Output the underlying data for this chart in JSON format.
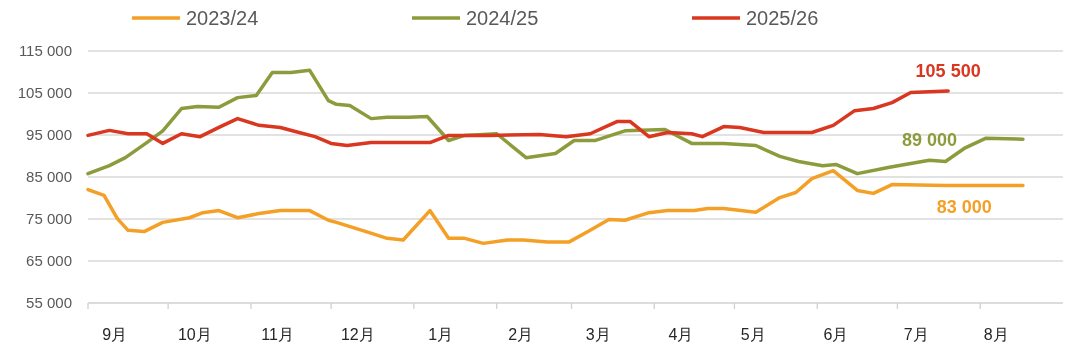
{
  "chart_data": {
    "type": "line",
    "xlim": [
      "2024-09-01",
      "2025-08-31"
    ],
    "xticks": [
      {
        "value": "2024-09-01",
        "label": null
      },
      {
        "value": "2024-10-01",
        "label": null
      },
      {
        "value": "2024-11-01",
        "label": null
      },
      {
        "value": "2024-12-01",
        "label": null
      },
      {
        "value": "2025-01-01",
        "label": null
      },
      {
        "value": "2025-02-01",
        "label": null
      },
      {
        "value": "2025-03-01",
        "label": null
      },
      {
        "value": "2025-04-01",
        "label": null
      },
      {
        "value": "2025-05-01",
        "label": null
      },
      {
        "value": "2025-06-01",
        "label": null
      },
      {
        "value": "2025-07-01",
        "label": null
      },
      {
        "value": "2025-08-01",
        "label": null
      },
      {
        "value": "2024-09-11",
        "label": "9月"
      },
      {
        "value": "2024-10-11",
        "label": "10月"
      },
      {
        "value": "2024-11-11",
        "label": "11月"
      },
      {
        "value": "2024-12-11",
        "label": "12月"
      },
      {
        "value": "2025-01-11",
        "label": "1月"
      },
      {
        "value": "2025-02-10",
        "label": "2月"
      },
      {
        "value": "2025-03-11",
        "label": "3月"
      },
      {
        "value": "2025-04-11",
        "label": "4月"
      },
      {
        "value": "2025-05-08",
        "label": "5月"
      },
      {
        "value": "2025-06-08",
        "label": "6月"
      },
      {
        "value": "2025-07-08",
        "label": "7月"
      },
      {
        "value": "2025-08-07",
        "label": "8月"
      }
    ],
    "ylim": [
      55000,
      115000
    ],
    "yticks": [
      {
        "value": 55000,
        "label": "55 000"
      },
      {
        "value": 65000,
        "label": "65 000"
      },
      {
        "value": 75000,
        "label": "75 000"
      },
      {
        "value": 85000,
        "label": "85 000"
      },
      {
        "value": 95000,
        "label": "95 000"
      },
      {
        "value": 105000,
        "label": "105 000"
      },
      {
        "value": 115000,
        "label": "115 000"
      }
    ],
    "grid": "y",
    "legend": "top",
    "series": [
      {
        "name": "2023/24",
        "color": "#f4a026",
        "x": [
          "2024-09-01",
          "2024-09-07",
          "2024-09-12",
          "2024-09-16",
          "2024-09-22",
          "2024-09-29",
          "2024-10-09",
          "2024-10-14",
          "2024-10-20",
          "2024-10-27",
          "2024-11-04",
          "2024-11-12",
          "2024-11-23",
          "2024-11-30",
          "2024-12-03",
          "2024-12-15",
          "2024-12-22",
          "2024-12-28",
          "2025-01-07",
          "2025-01-14",
          "2025-01-20",
          "2025-01-27",
          "2025-02-05",
          "2025-02-11",
          "2025-02-20",
          "2025-02-28",
          "2025-03-08",
          "2025-03-15",
          "2025-03-21",
          "2025-03-30",
          "2025-04-06",
          "2025-04-16",
          "2025-04-21",
          "2025-04-27",
          "2025-05-09",
          "2025-05-18",
          "2025-05-24",
          "2025-05-30",
          "2025-06-07",
          "2025-06-16",
          "2025-06-22",
          "2025-06-29",
          "2025-07-19",
          "2025-07-26",
          "2025-08-17"
        ],
        "values": [
          82000,
          80600,
          75100,
          72300,
          72000,
          74200,
          75300,
          76500,
          77000,
          75300,
          76300,
          77000,
          77000,
          74700,
          74200,
          71800,
          70400,
          70000,
          77000,
          70400,
          70400,
          69200,
          70000,
          70000,
          69500,
          69500,
          72300,
          74900,
          74700,
          76500,
          77000,
          77000,
          77500,
          77500,
          76600,
          80100,
          81300,
          84600,
          86500,
          81800,
          81100,
          83200,
          83000,
          83000,
          83000
        ]
      },
      {
        "name": "2024/25",
        "color": "#8c9c3c",
        "x": [
          "2024-09-01",
          "2024-09-09",
          "2024-09-15",
          "2024-09-23",
          "2024-09-29",
          "2024-10-06",
          "2024-10-12",
          "2024-10-20",
          "2024-10-27",
          "2024-11-03",
          "2024-11-09",
          "2024-11-16",
          "2024-11-23",
          "2024-11-30",
          "2024-12-03",
          "2024-12-08",
          "2024-12-16",
          "2024-12-22",
          "2024-12-30",
          "2025-01-06",
          "2025-01-14",
          "2025-01-20",
          "2025-02-01",
          "2025-02-12",
          "2025-02-23",
          "2025-03-02",
          "2025-03-10",
          "2025-03-21",
          "2025-04-05",
          "2025-04-15",
          "2025-04-27",
          "2025-05-09",
          "2025-05-18",
          "2025-05-25",
          "2025-06-03",
          "2025-06-08",
          "2025-06-16",
          "2025-06-28",
          "2025-07-06",
          "2025-07-13",
          "2025-07-19",
          "2025-07-26",
          "2025-08-03",
          "2025-08-17"
        ],
        "values": [
          85800,
          87700,
          89600,
          93200,
          96000,
          101300,
          101800,
          101600,
          103900,
          104400,
          109900,
          109900,
          110400,
          103200,
          102300,
          102000,
          98900,
          99200,
          99200,
          99400,
          93700,
          94900,
          95300,
          89600,
          90600,
          93700,
          93700,
          96000,
          96300,
          93000,
          93000,
          92500,
          89900,
          88700,
          87700,
          88000,
          85800,
          87300,
          88200,
          89000,
          88700,
          91800,
          94200,
          94000
        ]
      },
      {
        "name": "2025/26",
        "color": "#d9371f",
        "x": [
          "2024-09-01",
          "2024-09-09",
          "2024-09-16",
          "2024-09-23",
          "2024-09-29",
          "2024-10-06",
          "2024-10-13",
          "2024-10-20",
          "2024-10-27",
          "2024-11-04",
          "2024-11-12",
          "2024-11-19",
          "2024-11-25",
          "2024-12-01",
          "2024-12-07",
          "2024-12-16",
          "2024-12-28",
          "2025-01-07",
          "2025-01-14",
          "2025-01-29",
          "2025-02-17",
          "2025-02-27",
          "2025-03-08",
          "2025-03-18",
          "2025-03-23",
          "2025-03-30",
          "2025-04-06",
          "2025-04-15",
          "2025-04-19",
          "2025-04-27",
          "2025-05-03",
          "2025-05-12",
          "2025-05-30",
          "2025-06-07",
          "2025-06-15",
          "2025-06-22",
          "2025-06-29",
          "2025-07-06",
          "2025-07-20"
        ],
        "values": [
          94900,
          96100,
          95300,
          95300,
          93000,
          95300,
          94600,
          96800,
          98900,
          97300,
          96800,
          95600,
          94600,
          93000,
          92500,
          93200,
          93200,
          93200,
          94900,
          94900,
          95100,
          94600,
          95300,
          98200,
          98200,
          94600,
          95600,
          95300,
          94600,
          97000,
          96800,
          95600,
          95600,
          97300,
          100800,
          101300,
          102700,
          105100,
          105500
        ]
      }
    ],
    "annotations": [
      {
        "text": "83 000",
        "x": "2025-07-26",
        "y": 83000
      },
      {
        "text": "89 000",
        "x": "2025-07-13",
        "y": 89000
      },
      {
        "text": "105 500",
        "x": "2025-07-20",
        "y": 105500
      }
    ]
  }
}
